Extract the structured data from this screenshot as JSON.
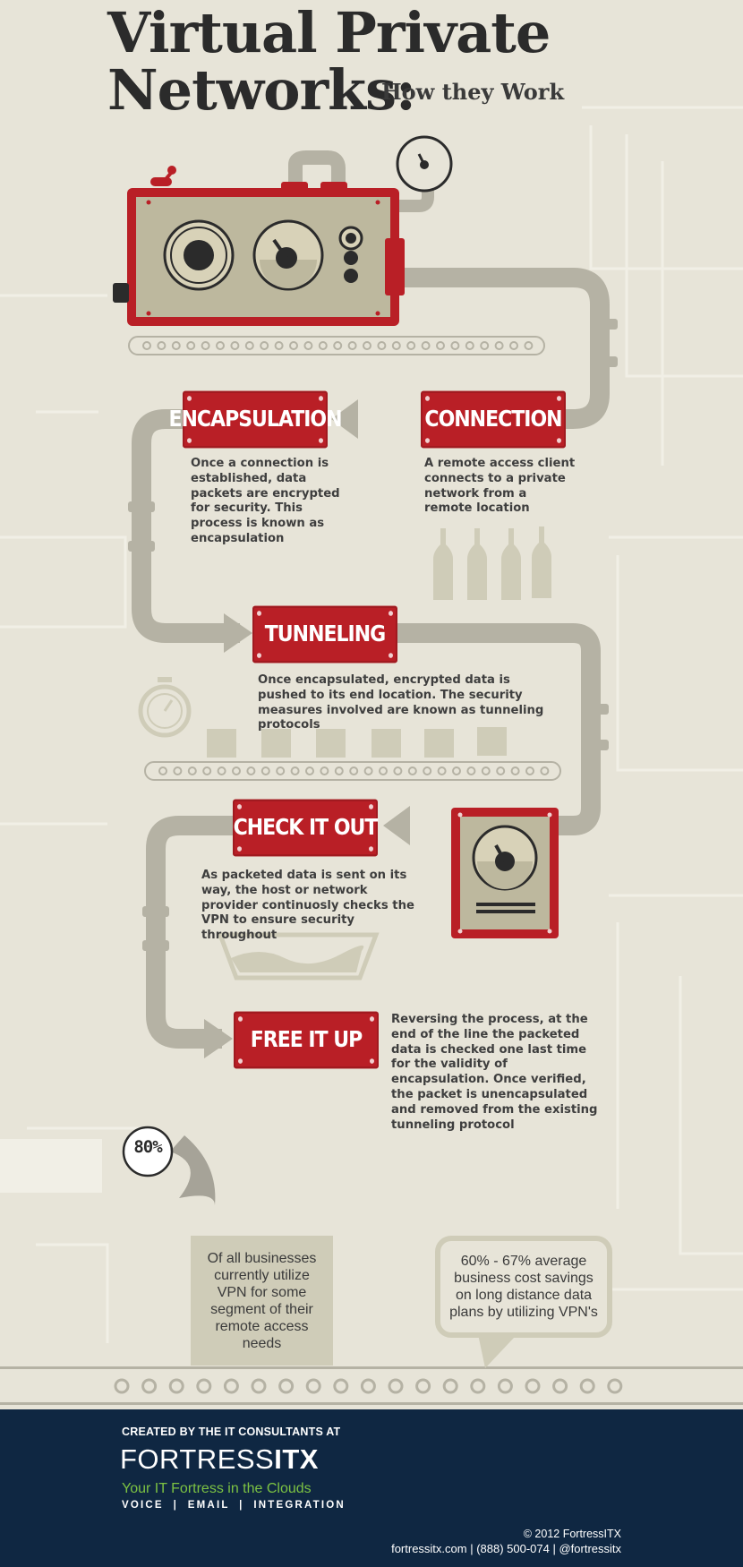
{
  "header": {
    "title_line1": "Virtual Private",
    "title_line2": "Networks:",
    "subtitle": "How they Work"
  },
  "steps": [
    {
      "label": "CONNECTION",
      "description": "A remote access client connects to a private network from a remote location"
    },
    {
      "label": "ENCAPSULATION",
      "description": "Once a connection is established, data packets are encrypted for security. This process is known as encapsulation"
    },
    {
      "label": "TUNNELING",
      "description": "Once encapsulated, encrypted data is pushed to its end location. The security measures involved are known as tunneling protocols"
    },
    {
      "label": "CHECK IT OUT",
      "description": "As packeted data is sent on its way, the host or network provider continuosly checks the VPN to ensure security throughout"
    },
    {
      "label": "FREE IT UP",
      "description": "Reversing the process, at the end of the line the packeted data is checked one last time for the validity of encapsulation. Once verified, the packet is unencapsulated and removed from the existing tunneling protocol"
    }
  ],
  "stats": {
    "percent_badge": "80%",
    "percent_text": "Of all businesses currently utilize VPN for some segment of their remote access needs",
    "savings_text": "60% - 67% average business cost savings on long distance data plans by utilizing VPN's"
  },
  "footer": {
    "created_by": "CREATED BY THE IT CONSULTANTS AT",
    "logo_light": "FORTRESS",
    "logo_bold": "ITX",
    "tagline": "Your IT Fortress in the Clouds",
    "services": "VOICE  |  EMAIL  |  INTEGRATION",
    "copyright": "© 2012 FortressITX",
    "contact": "fortressitx.com | (888) 500-074 | @fortressitx"
  },
  "colors": {
    "background": "#e7e4d8",
    "brand_red": "#b91f26",
    "pipe_gray": "#b5b2a4",
    "footer_navy": "#0f2742",
    "tagline_green": "#7cc242"
  },
  "icons": [
    "machine-icon",
    "gauge-icon",
    "bottles-icon",
    "stopwatch-icon",
    "meter-box-icon",
    "tray-icon",
    "arrow-icon"
  ]
}
